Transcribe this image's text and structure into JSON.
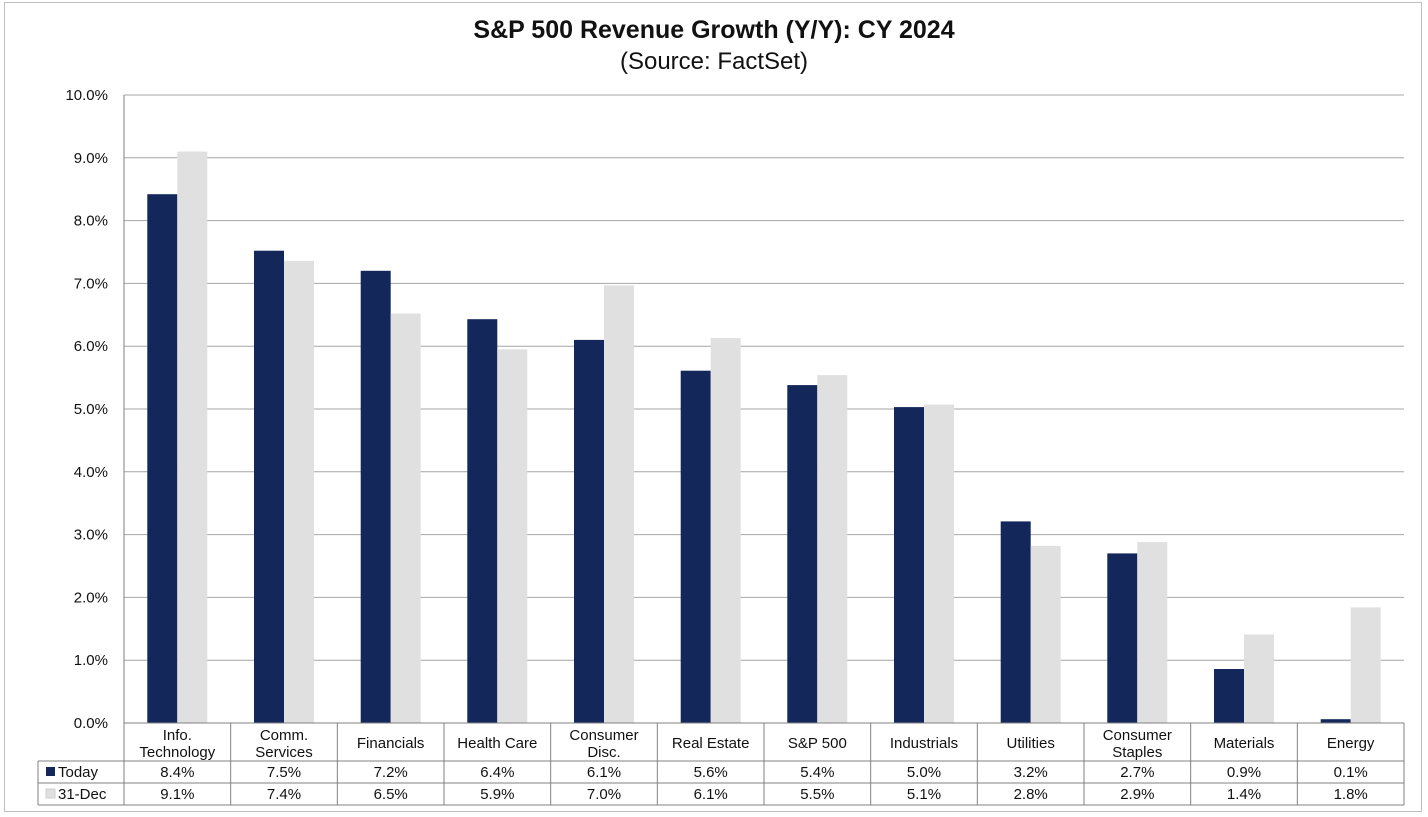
{
  "chart_data": {
    "type": "bar",
    "title": "S&P 500 Revenue Growth (Y/Y): CY 2024",
    "subtitle": "(Source: FactSet)",
    "categories": [
      [
        "Info.",
        "Technology"
      ],
      [
        "Comm.",
        "Services"
      ],
      [
        "Financials"
      ],
      [
        "Health Care"
      ],
      [
        "Consumer",
        "Disc."
      ],
      [
        "Real Estate"
      ],
      [
        "S&P 500"
      ],
      [
        "Industrials"
      ],
      [
        "Utilities"
      ],
      [
        "Consumer",
        "Staples"
      ],
      [
        "Materials"
      ],
      [
        "Energy"
      ]
    ],
    "series": [
      {
        "name": "Today",
        "color": "#14275a",
        "values": [
          8.42,
          7.52,
          7.2,
          6.43,
          6.1,
          5.61,
          5.38,
          5.03,
          3.21,
          2.7,
          0.86,
          0.06
        ],
        "labels": [
          "8.4%",
          "7.5%",
          "7.2%",
          "6.4%",
          "6.1%",
          "5.6%",
          "5.4%",
          "5.0%",
          "3.2%",
          "2.7%",
          "0.9%",
          "0.1%"
        ]
      },
      {
        "name": "31-Dec",
        "color": "#e0e0e0",
        "values": [
          9.1,
          7.36,
          6.52,
          5.95,
          6.97,
          6.13,
          5.54,
          5.07,
          2.82,
          2.88,
          1.41,
          1.84
        ],
        "labels": [
          "9.1%",
          "7.4%",
          "6.5%",
          "5.9%",
          "7.0%",
          "6.1%",
          "5.5%",
          "5.1%",
          "2.8%",
          "2.9%",
          "1.4%",
          "1.8%"
        ]
      }
    ],
    "ylim": [
      0,
      10
    ],
    "yticks": [
      "0.0%",
      "1.0%",
      "2.0%",
      "3.0%",
      "4.0%",
      "5.0%",
      "6.0%",
      "7.0%",
      "8.0%",
      "9.0%",
      "10.0%"
    ],
    "grid": true,
    "legend": "data-table-left"
  }
}
